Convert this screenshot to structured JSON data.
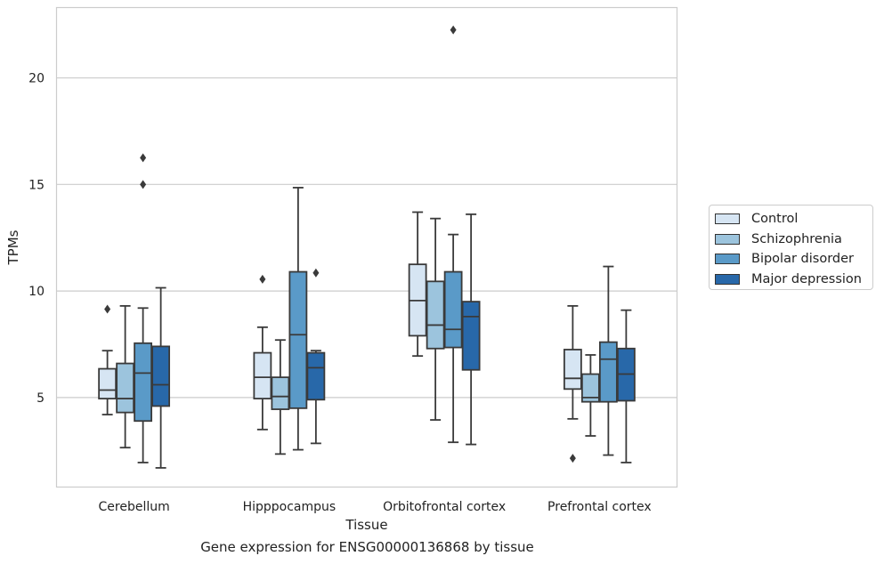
{
  "chart_data": {
    "type": "box",
    "title": "",
    "caption": "Gene expression for ENSG00000136868 by tissue",
    "xlabel": "Tissue",
    "ylabel": "TPMs",
    "ylim": [
      0.8,
      23.3
    ],
    "yticks": [
      5,
      10,
      15,
      20
    ],
    "grid": "horizontal",
    "legend_position": "right",
    "categories": [
      "Cerebellum",
      "Hipppocampus",
      "Orbitofrontal cortex",
      "Prefrontal cortex"
    ],
    "series": [
      {
        "name": "Control",
        "color": "#d6e5f3",
        "boxes": [
          {
            "whisker_low": 4.2,
            "q1": 4.95,
            "median": 5.35,
            "q3": 6.35,
            "whisker_high": 7.2,
            "outliers": [
              9.15
            ]
          },
          {
            "whisker_low": 3.5,
            "q1": 4.95,
            "median": 5.95,
            "q3": 7.1,
            "whisker_high": 8.3,
            "outliers": [
              10.55
            ]
          },
          {
            "whisker_low": 6.95,
            "q1": 7.9,
            "median": 9.55,
            "q3": 11.25,
            "whisker_high": 13.7,
            "outliers": []
          },
          {
            "whisker_low": 4.0,
            "q1": 5.4,
            "median": 5.9,
            "q3": 7.25,
            "whisker_high": 9.3,
            "outliers": [
              2.15
            ]
          }
        ]
      },
      {
        "name": "Schizophrenia",
        "color": "#9cc4dd",
        "boxes": [
          {
            "whisker_low": 2.65,
            "q1": 4.3,
            "median": 4.95,
            "q3": 6.6,
            "whisker_high": 9.3,
            "outliers": []
          },
          {
            "whisker_low": 2.35,
            "q1": 4.45,
            "median": 5.05,
            "q3": 5.95,
            "whisker_high": 7.7,
            "outliers": []
          },
          {
            "whisker_low": 3.95,
            "q1": 7.3,
            "median": 8.4,
            "q3": 10.45,
            "whisker_high": 13.4,
            "outliers": []
          },
          {
            "whisker_low": 3.2,
            "q1": 4.8,
            "median": 5.0,
            "q3": 6.1,
            "whisker_high": 7.0,
            "outliers": []
          }
        ]
      },
      {
        "name": "Bipolar disorder",
        "color": "#5a9ac8",
        "boxes": [
          {
            "whisker_low": 1.95,
            "q1": 3.9,
            "median": 6.15,
            "q3": 7.55,
            "whisker_high": 9.2,
            "outliers": [
              15.0,
              16.25
            ]
          },
          {
            "whisker_low": 2.55,
            "q1": 4.5,
            "median": 7.95,
            "q3": 10.9,
            "whisker_high": 14.85,
            "outliers": []
          },
          {
            "whisker_low": 2.9,
            "q1": 7.35,
            "median": 8.2,
            "q3": 10.9,
            "whisker_high": 12.65,
            "outliers": [
              22.25
            ]
          },
          {
            "whisker_low": 2.3,
            "q1": 4.8,
            "median": 6.8,
            "q3": 7.6,
            "whisker_high": 11.15,
            "outliers": []
          }
        ]
      },
      {
        "name": "Major depression",
        "color": "#2868a9",
        "boxes": [
          {
            "whisker_low": 1.7,
            "q1": 4.6,
            "median": 5.6,
            "q3": 7.4,
            "whisker_high": 10.15,
            "outliers": []
          },
          {
            "whisker_low": 2.85,
            "q1": 4.9,
            "median": 6.4,
            "q3": 7.1,
            "whisker_high": 7.2,
            "outliers": [
              10.85
            ]
          },
          {
            "whisker_low": 2.8,
            "q1": 6.3,
            "median": 8.8,
            "q3": 9.5,
            "whisker_high": 13.6,
            "outliers": []
          },
          {
            "whisker_low": 1.95,
            "q1": 4.85,
            "median": 6.1,
            "q3": 7.3,
            "whisker_high": 9.1,
            "outliers": []
          }
        ]
      }
    ]
  }
}
